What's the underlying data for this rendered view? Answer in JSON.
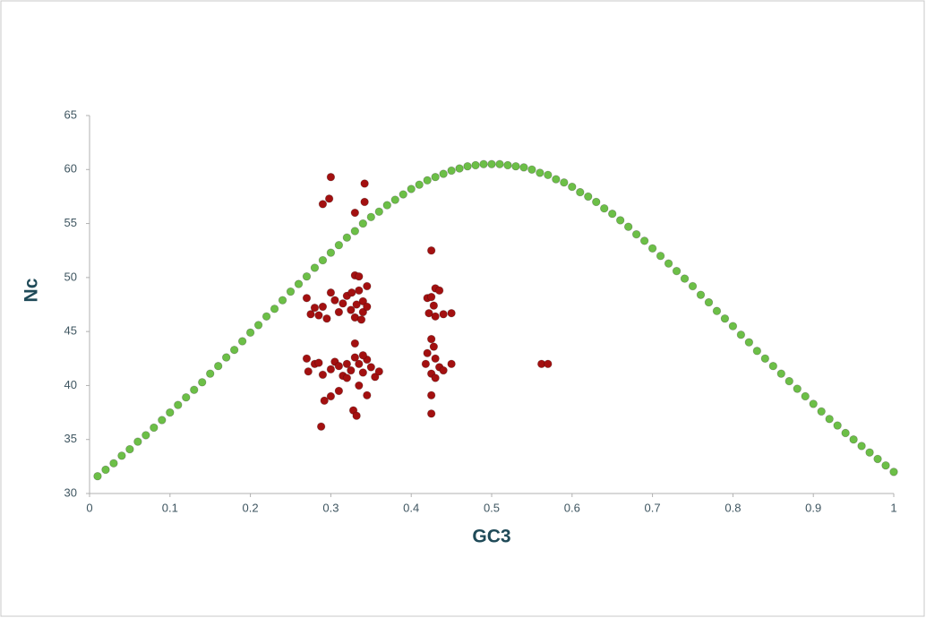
{
  "chart_data": {
    "type": "scatter",
    "x_label": "GC3",
    "y_label": "Nc",
    "xlim": [
      0,
      1
    ],
    "xticks": [
      0,
      0.1,
      0.2,
      0.3,
      0.4,
      0.5,
      0.6,
      0.7,
      0.8,
      0.9,
      1
    ],
    "ylim": [
      30,
      65
    ],
    "yticks": [
      30,
      35,
      40,
      45,
      50,
      55,
      60,
      65
    ],
    "grid": false,
    "series": [
      {
        "color": "#6cbf47",
        "x": [
          0.01,
          0.02,
          0.03,
          0.04,
          0.05,
          0.06,
          0.07,
          0.08,
          0.09,
          0.1,
          0.11,
          0.12,
          0.13,
          0.14,
          0.15,
          0.16,
          0.17,
          0.18,
          0.19,
          0.2,
          0.21,
          0.22,
          0.23,
          0.24,
          0.25,
          0.26,
          0.27,
          0.28,
          0.29,
          0.3,
          0.31,
          0.32,
          0.33,
          0.34,
          0.35,
          0.36,
          0.37,
          0.38,
          0.39,
          0.4,
          0.41,
          0.42,
          0.43,
          0.44,
          0.45,
          0.46,
          0.47,
          0.48,
          0.49,
          0.5,
          0.51,
          0.52,
          0.53,
          0.54,
          0.55,
          0.56,
          0.57,
          0.58,
          0.59,
          0.6,
          0.61,
          0.62,
          0.63,
          0.64,
          0.65,
          0.66,
          0.67,
          0.68,
          0.69,
          0.7,
          0.71,
          0.72,
          0.73,
          0.74,
          0.75,
          0.76,
          0.77,
          0.78,
          0.79,
          0.8,
          0.81,
          0.82,
          0.83,
          0.84,
          0.85,
          0.86,
          0.87,
          0.88,
          0.89,
          0.9,
          0.91,
          0.92,
          0.93,
          0.94,
          0.95,
          0.96,
          0.97,
          0.98,
          0.99,
          1
        ],
        "y": [
          31.6,
          32.2,
          32.8,
          33.5,
          34.1,
          34.8,
          35.4,
          36.1,
          36.8,
          37.5,
          38.2,
          38.9,
          39.6,
          40.3,
          41.1,
          41.8,
          42.6,
          43.3,
          44.1,
          44.9,
          45.6,
          46.4,
          47.1,
          47.9,
          48.7,
          49.4,
          50.1,
          50.9,
          51.6,
          52.3,
          53.0,
          53.7,
          54.3,
          55.0,
          55.6,
          56.1,
          56.7,
          57.2,
          57.7,
          58.2,
          58.6,
          59.0,
          59.3,
          59.6,
          59.9,
          60.1,
          60.3,
          60.4,
          60.5,
          60.5,
          60.5,
          60.4,
          60.3,
          60.2,
          60.0,
          59.7,
          59.5,
          59.1,
          58.8,
          58.4,
          57.9,
          57.5,
          57.0,
          56.4,
          55.9,
          55.3,
          54.7,
          54.0,
          53.4,
          52.7,
          52.0,
          51.3,
          50.6,
          49.9,
          49.2,
          48.4,
          47.7,
          46.9,
          46.2,
          45.5,
          44.7,
          44.0,
          43.2,
          42.5,
          41.8,
          41.1,
          40.4,
          39.7,
          39.0,
          38.3,
          37.6,
          36.9,
          36.3,
          35.6,
          35.0,
          34.4,
          33.8,
          33.2,
          32.6,
          32.0
        ]
      },
      {
        "color": "#a31010",
        "x": [
          0.3,
          0.342,
          0.29,
          0.298,
          0.342,
          0.33,
          0.27,
          0.275,
          0.28,
          0.285,
          0.29,
          0.295,
          0.3,
          0.305,
          0.31,
          0.315,
          0.32,
          0.325,
          0.33,
          0.335,
          0.33,
          0.335,
          0.34,
          0.34,
          0.345,
          0.345,
          0.338,
          0.332,
          0.326,
          0.27,
          0.272,
          0.28,
          0.285,
          0.29,
          0.3,
          0.305,
          0.31,
          0.315,
          0.32,
          0.325,
          0.33,
          0.335,
          0.34,
          0.345,
          0.35,
          0.355,
          0.36,
          0.33,
          0.34,
          0.32,
          0.31,
          0.3,
          0.292,
          0.288,
          0.328,
          0.332,
          0.345,
          0.335,
          0.425,
          0.42,
          0.43,
          0.425,
          0.435,
          0.428,
          0.422,
          0.43,
          0.44,
          0.45,
          0.425,
          0.428,
          0.42,
          0.43,
          0.418,
          0.435,
          0.425,
          0.44,
          0.45,
          0.43,
          0.425,
          0.425,
          0.562,
          0.57
        ],
        "y": [
          59.3,
          58.7,
          56.8,
          57.3,
          57.0,
          56.0,
          48.1,
          46.6,
          47.2,
          46.5,
          47.3,
          46.2,
          48.6,
          47.9,
          46.8,
          47.6,
          48.3,
          47.0,
          50.2,
          50.1,
          46.3,
          48.8,
          47.8,
          46.8,
          49.2,
          47.3,
          46.1,
          47.5,
          48.6,
          42.5,
          41.3,
          42.0,
          42.1,
          41.0,
          41.5,
          42.2,
          41.8,
          40.9,
          42.0,
          41.4,
          42.6,
          42.0,
          41.2,
          42.4,
          41.7,
          40.8,
          41.3,
          43.9,
          42.8,
          40.7,
          39.5,
          39.0,
          38.6,
          36.2,
          37.7,
          37.2,
          39.1,
          40.0,
          52.5,
          48.1,
          49.0,
          48.2,
          48.8,
          47.4,
          46.7,
          46.4,
          46.6,
          46.7,
          44.3,
          43.6,
          43.0,
          42.5,
          42.0,
          41.7,
          41.1,
          41.4,
          42.0,
          40.7,
          39.1,
          37.4,
          42.0,
          42.0
        ]
      }
    ]
  }
}
